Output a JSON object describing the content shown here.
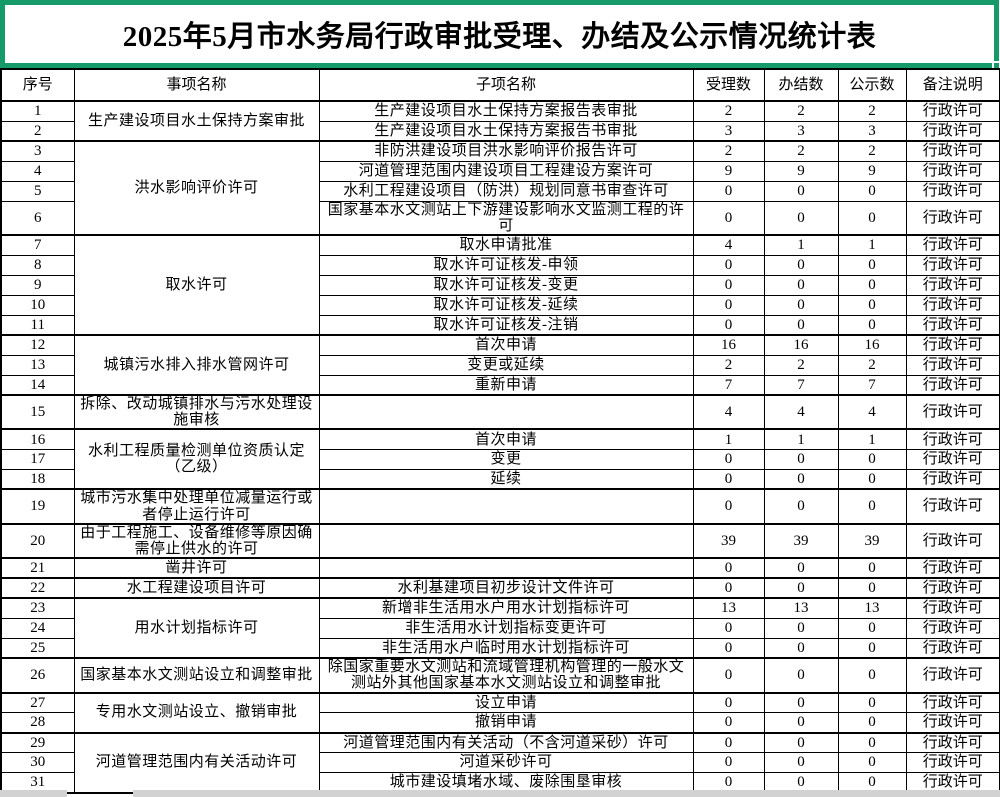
{
  "title": "2025年5月市水务局行政审批受理、办结及公示情况统计表",
  "colors": {
    "selection_green": "#169a6a",
    "grid_black": "#000000",
    "partial_row_gray": "#d2d2d2",
    "background": "#ffffff"
  },
  "columns": [
    "序号",
    "事项名称",
    "子项名称",
    "受理数",
    "办结数",
    "公示数",
    "备注说明"
  ],
  "table": {
    "groups": [
      {
        "item": "生产建设项目水土保持方案审批",
        "rows": [
          {
            "no": "1",
            "sub": "生产建设项目水土保持方案报告表审批",
            "accepted": "2",
            "completed": "2",
            "published": "2",
            "remark": "行政许可"
          },
          {
            "no": "2",
            "sub": "生产建设项目水土保持方案报告书审批",
            "accepted": "3",
            "completed": "3",
            "published": "3",
            "remark": "行政许可"
          }
        ]
      },
      {
        "item": "洪水影响评价许可",
        "rows": [
          {
            "no": "3",
            "sub": "非防洪建设项目洪水影响评价报告许可",
            "accepted": "2",
            "completed": "2",
            "published": "2",
            "remark": "行政许可"
          },
          {
            "no": "4",
            "sub": "河道管理范围内建设项目工程建设方案许可",
            "accepted": "9",
            "completed": "9",
            "published": "9",
            "remark": "行政许可"
          },
          {
            "no": "5",
            "sub": "水利工程建设项目（防洪）规划同意书审查许可",
            "accepted": "0",
            "completed": "0",
            "published": "0",
            "remark": "行政许可"
          },
          {
            "no": "6",
            "sub": "国家基本水文测站上下游建设影响水文监测工程的许可",
            "accepted": "0",
            "completed": "0",
            "published": "0",
            "remark": "行政许可",
            "tall": true
          }
        ]
      },
      {
        "item": "取水许可",
        "rows": [
          {
            "no": "7",
            "sub": "取水申请批准",
            "accepted": "4",
            "completed": "1",
            "published": "1",
            "remark": "行政许可"
          },
          {
            "no": "8",
            "sub": "取水许可证核发-申领",
            "accepted": "0",
            "completed": "0",
            "published": "0",
            "remark": "行政许可"
          },
          {
            "no": "9",
            "sub": "取水许可证核发-变更",
            "accepted": "0",
            "completed": "0",
            "published": "0",
            "remark": "行政许可"
          },
          {
            "no": "10",
            "sub": "取水许可证核发-延续",
            "accepted": "0",
            "completed": "0",
            "published": "0",
            "remark": "行政许可"
          },
          {
            "no": "11",
            "sub": "取水许可证核发-注销",
            "accepted": "0",
            "completed": "0",
            "published": "0",
            "remark": "行政许可"
          }
        ]
      },
      {
        "item": "城镇污水排入排水管网许可",
        "rows": [
          {
            "no": "12",
            "sub": "首次申请",
            "accepted": "16",
            "completed": "16",
            "published": "16",
            "remark": "行政许可"
          },
          {
            "no": "13",
            "sub": "变更或延续",
            "accepted": "2",
            "completed": "2",
            "published": "2",
            "remark": "行政许可"
          },
          {
            "no": "14",
            "sub": "重新申请",
            "accepted": "7",
            "completed": "7",
            "published": "7",
            "remark": "行政许可"
          }
        ]
      },
      {
        "item": "拆除、改动城镇排水与污水处理设施审核",
        "rows": [
          {
            "no": "15",
            "sub": "",
            "accepted": "4",
            "completed": "4",
            "published": "4",
            "remark": "行政许可",
            "tall": true
          }
        ]
      },
      {
        "item": "水利工程质量检测单位资质认定（乙级）",
        "rows": [
          {
            "no": "16",
            "sub": "首次申请",
            "accepted": "1",
            "completed": "1",
            "published": "1",
            "remark": "行政许可"
          },
          {
            "no": "17",
            "sub": "变更",
            "accepted": "0",
            "completed": "0",
            "published": "0",
            "remark": "行政许可"
          },
          {
            "no": "18",
            "sub": "延续",
            "accepted": "0",
            "completed": "0",
            "published": "0",
            "remark": "行政许可"
          }
        ]
      },
      {
        "item": "城市污水集中处理单位减量运行或者停止运行许可",
        "rows": [
          {
            "no": "19",
            "sub": "",
            "accepted": "0",
            "completed": "0",
            "published": "0",
            "remark": "行政许可",
            "tall": true
          }
        ]
      },
      {
        "item": "由于工程施工、设备维修等原因确需停止供水的许可",
        "rows": [
          {
            "no": "20",
            "sub": "",
            "accepted": "39",
            "completed": "39",
            "published": "39",
            "remark": "行政许可",
            "tall": true
          }
        ]
      },
      {
        "item": "凿井许可",
        "rows": [
          {
            "no": "21",
            "sub": "",
            "accepted": "0",
            "completed": "0",
            "published": "0",
            "remark": "行政许可"
          }
        ]
      },
      {
        "item": "水工程建设项目许可",
        "rows": [
          {
            "no": "22",
            "sub": "水利基建项目初步设计文件许可",
            "accepted": "0",
            "completed": "0",
            "published": "0",
            "remark": "行政许可"
          }
        ]
      },
      {
        "item": "用水计划指标许可",
        "rows": [
          {
            "no": "23",
            "sub": "新增非生活用水户用水计划指标许可",
            "accepted": "13",
            "completed": "13",
            "published": "13",
            "remark": "行政许可"
          },
          {
            "no": "24",
            "sub": "非生活用水计划指标变更许可",
            "accepted": "0",
            "completed": "0",
            "published": "0",
            "remark": "行政许可"
          },
          {
            "no": "25",
            "sub": "非生活用水户临时用水计划指标许可",
            "accepted": "0",
            "completed": "0",
            "published": "0",
            "remark": "行政许可"
          }
        ]
      },
      {
        "item": "国家基本水文测站设立和调整审批",
        "rows": [
          {
            "no": "26",
            "sub": "除国家重要水文测站和流域管理机构管理的一般水文测站外其他国家基本水文测站设立和调整审批",
            "accepted": "0",
            "completed": "0",
            "published": "0",
            "remark": "行政许可",
            "tall": true
          }
        ]
      },
      {
        "item": "专用水文测站设立、撤销审批",
        "rows": [
          {
            "no": "27",
            "sub": "设立申请",
            "accepted": "0",
            "completed": "0",
            "published": "0",
            "remark": "行政许可"
          },
          {
            "no": "28",
            "sub": "撤销申请",
            "accepted": "0",
            "completed": "0",
            "published": "0",
            "remark": "行政许可"
          }
        ]
      },
      {
        "item": "河道管理范围内有关活动许可",
        "rows": [
          {
            "no": "29",
            "sub": "河道管理范围内有关活动（不含河道采砂）许可",
            "accepted": "0",
            "completed": "0",
            "published": "0",
            "remark": "行政许可"
          },
          {
            "no": "30",
            "sub": "河道采砂许可",
            "accepted": "0",
            "completed": "0",
            "published": "0",
            "remark": "行政许可"
          },
          {
            "no": "31",
            "sub": "城市建设填堵水域、废除围垦审核",
            "accepted": "0",
            "completed": "0",
            "published": "0",
            "remark": "行政许可"
          }
        ]
      }
    ]
  }
}
